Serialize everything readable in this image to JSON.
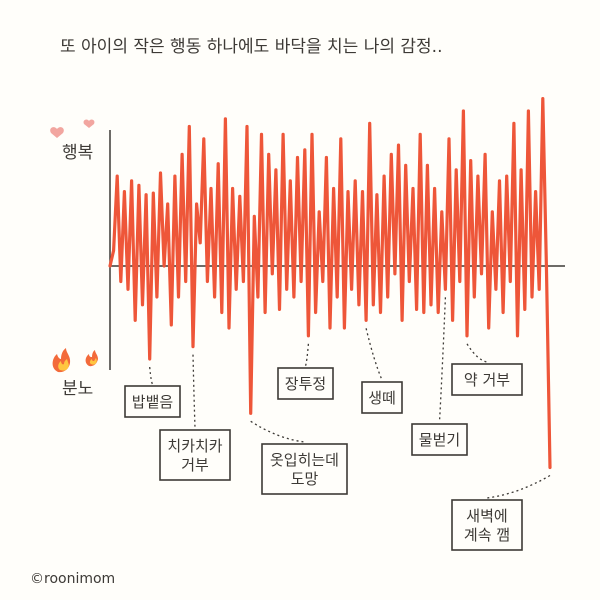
{
  "title": "또 아이의 작은 행동 하나에도 바닥을 치는 나의 감정..",
  "credit": "©roonimom",
  "chart_data": {
    "type": "line",
    "y_axis_top_label": "행복",
    "y_axis_bottom_label": "분노",
    "ylim": [
      -100,
      100
    ],
    "zero_line": true,
    "line_color": "#ee5639",
    "series": [
      {
        "values": [
          0,
          10,
          58,
          -10,
          48,
          -15,
          55,
          -35,
          52,
          -25,
          46,
          -60,
          47,
          -20,
          60,
          0,
          40,
          -38,
          58,
          -20,
          72,
          -10,
          90,
          -52,
          40,
          15,
          82,
          -10,
          50,
          -20,
          66,
          -30,
          95,
          -40,
          50,
          -15,
          45,
          -10,
          90,
          -95,
          32,
          -20,
          85,
          -30,
          72,
          -5,
          62,
          -28,
          85,
          -15,
          55,
          -20,
          70,
          -10,
          75,
          -45,
          85,
          -30,
          35,
          -10,
          70,
          -40,
          50,
          -20,
          82,
          -40,
          48,
          -15,
          55,
          -25,
          48,
          -35,
          92,
          -25,
          46,
          -30,
          58,
          -20,
          72,
          -5,
          78,
          -35,
          65,
          -10,
          50,
          -28,
          85,
          -30,
          65,
          -25,
          50,
          -30,
          35,
          -15,
          82,
          -35,
          62,
          -10,
          100,
          -45,
          68,
          -20,
          58,
          -5,
          72,
          -40,
          35,
          -15,
          55,
          -30,
          58,
          -10,
          92,
          -45,
          62,
          -28,
          100,
          -20,
          48,
          -15,
          108,
          0,
          -130
        ]
      }
    ],
    "annotations": [
      {
        "text": "밥뱉음",
        "point_index": 11
      },
      {
        "text": "치카치카\n거부",
        "point_index": 23
      },
      {
        "text": "옷입히는데\n도망",
        "point_index": 39
      },
      {
        "text": "장투정",
        "point_index": 55
      },
      {
        "text": "생떼",
        "point_index": 71
      },
      {
        "text": "물벋기",
        "point_index": 93
      },
      {
        "text": "약 거부",
        "point_index": 99
      },
      {
        "text": "새벽에\n계속 깸",
        "point_index": 122
      }
    ]
  }
}
